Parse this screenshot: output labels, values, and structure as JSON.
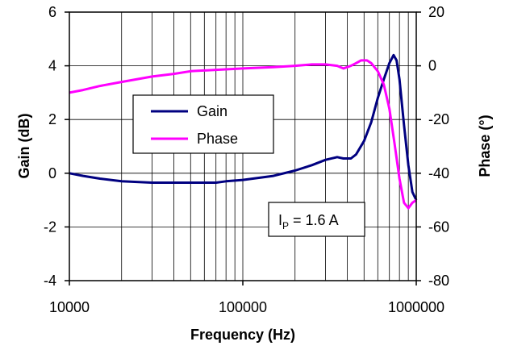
{
  "chart_data": {
    "type": "line",
    "xlabel": "Frequency (Hz)",
    "ylabel_left": "Gain (dB)",
    "ylabel_right": "Phase (°)",
    "x_scale": "log",
    "xlim": [
      10000,
      1000000
    ],
    "ylim_left": [
      -4,
      6
    ],
    "ylim_right": [
      -80,
      20
    ],
    "x_ticks": [
      {
        "value": 10000,
        "label": "10000"
      },
      {
        "value": 100000,
        "label": "100000"
      },
      {
        "value": 1000000,
        "label": "1000000"
      }
    ],
    "y_ticks_left": [
      {
        "value": 6,
        "label": "6"
      },
      {
        "value": 4,
        "label": "4"
      },
      {
        "value": 2,
        "label": "2"
      },
      {
        "value": 0,
        "label": "0"
      },
      {
        "value": -2,
        "label": "-2"
      },
      {
        "value": -4,
        "label": "-4"
      }
    ],
    "y_ticks_right": [
      {
        "value": 20,
        "label": "20"
      },
      {
        "value": 0,
        "label": "0"
      },
      {
        "value": -20,
        "label": "-20"
      },
      {
        "value": -40,
        "label": "-40"
      },
      {
        "value": -60,
        "label": "-60"
      },
      {
        "value": -80,
        "label": "-80"
      }
    ],
    "grid": {
      "vertical": "log-decade-and-minor",
      "horizontal": "major"
    },
    "legend": {
      "placement": "center-left"
    },
    "annotation": {
      "main": "I",
      "sub": "P",
      "rest": " = 1.6 A"
    },
    "series": [
      {
        "name": "Gain",
        "axis": "left",
        "color": "#000080",
        "x": [
          10000,
          12000,
          15000,
          20000,
          30000,
          40000,
          50000,
          60000,
          70000,
          80000,
          100000,
          150000,
          200000,
          250000,
          300000,
          350000,
          380000,
          420000,
          450000,
          500000,
          550000,
          600000,
          650000,
          700000,
          740000,
          770000,
          800000,
          850000,
          900000,
          950000,
          1000000
        ],
        "values": [
          0.0,
          -0.1,
          -0.2,
          -0.3,
          -0.35,
          -0.35,
          -0.35,
          -0.35,
          -0.35,
          -0.3,
          -0.25,
          -0.1,
          0.1,
          0.3,
          0.5,
          0.6,
          0.55,
          0.55,
          0.7,
          1.2,
          1.9,
          2.8,
          3.5,
          4.1,
          4.4,
          4.2,
          3.5,
          1.8,
          0.3,
          -0.7,
          -1.0
        ]
      },
      {
        "name": "Phase",
        "axis": "right",
        "color": "#FF00FF",
        "x": [
          10000,
          12000,
          15000,
          20000,
          30000,
          40000,
          50000,
          70000,
          100000,
          150000,
          200000,
          250000,
          300000,
          350000,
          380000,
          420000,
          450000,
          480000,
          520000,
          550000,
          600000,
          650000,
          700000,
          750000,
          800000,
          850000,
          900000,
          950000,
          1000000
        ],
        "values": [
          -10,
          -9,
          -7.5,
          -6,
          -4,
          -3,
          -2,
          -1.5,
          -1,
          -0.5,
          0,
          0.5,
          0.5,
          0,
          -1,
          0,
          1,
          2,
          2,
          1,
          -2,
          -7,
          -16,
          -29,
          -42,
          -51,
          -53,
          -51,
          -50
        ]
      }
    ]
  }
}
